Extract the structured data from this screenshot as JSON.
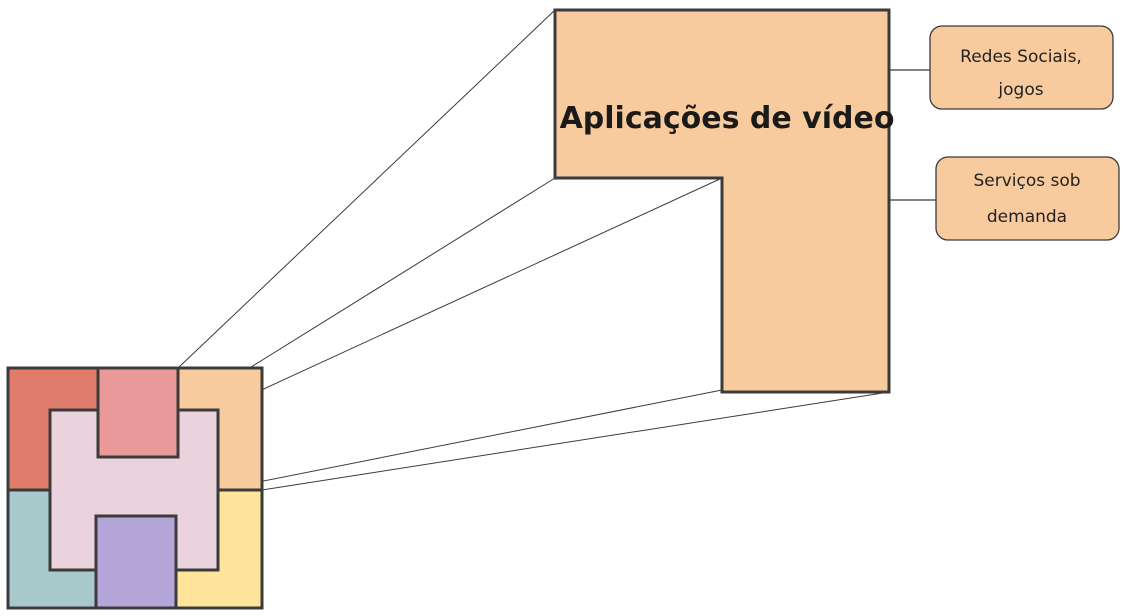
{
  "diagram": {
    "main_label": "Aplicações de vídeo",
    "callouts": [
      {
        "lines": [
          "Redes Sociais,",
          "jogos"
        ]
      },
      {
        "lines": [
          "Serviços sob",
          "demanda"
        ]
      }
    ],
    "colors": {
      "coral": "#e07c6b",
      "pink": "#e9999a",
      "peach": "#f7cb9e",
      "teal": "#a8c9cc",
      "yellow": "#fee39a",
      "lavender": "#ead3dd",
      "purple": "#b3a5d8",
      "outline": "#3b3b3b",
      "callout_fill": "#f7cb9e"
    }
  }
}
